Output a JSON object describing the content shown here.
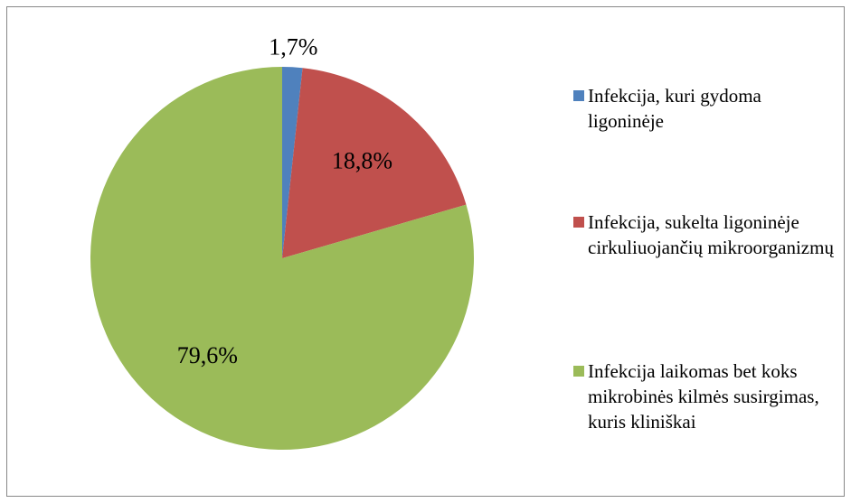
{
  "chart_data": {
    "type": "pie",
    "categories": [
      "Infekcija, kuri gydoma ligoninėje",
      "Infekcija, sukelta ligoninėje cirkuliuojančių mikroorganizmų",
      "Infekcija laikomas bet koks mikrobinės kilmės susirgimas, kuris kliniškai"
    ],
    "values": [
      1.7,
      18.8,
      79.6
    ],
    "value_labels": [
      "1,7%",
      "18,8%",
      "79,6%"
    ],
    "colors": [
      "#4f81bd",
      "#c0504d",
      "#9bbb59"
    ],
    "legend": "right"
  }
}
